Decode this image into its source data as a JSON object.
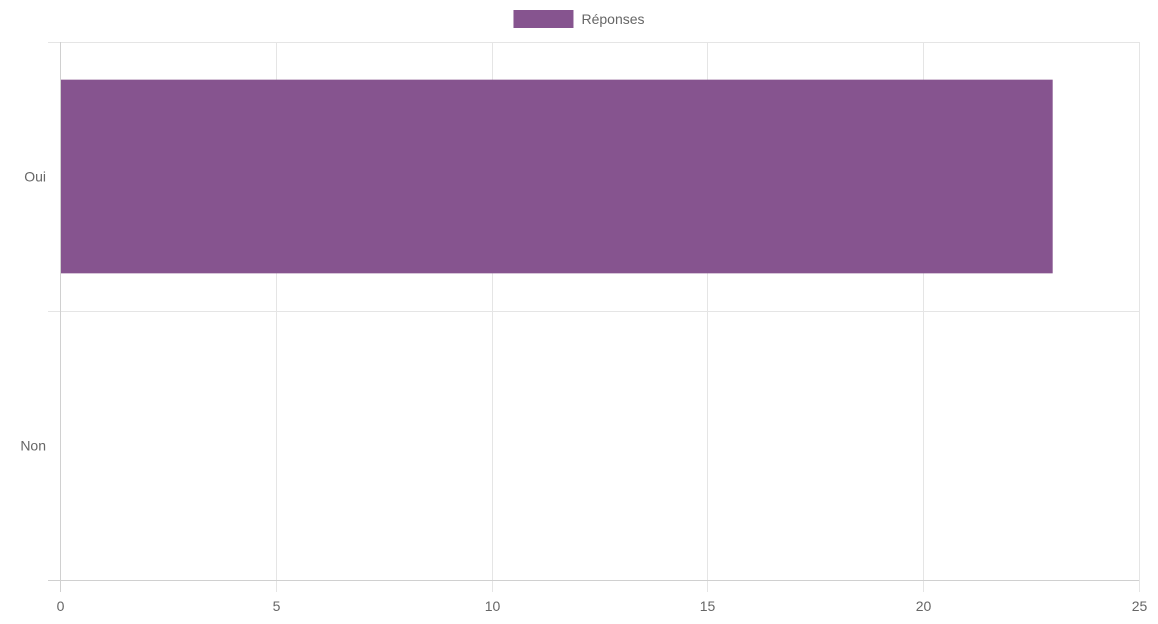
{
  "chart_data": {
    "type": "bar",
    "orientation": "horizontal",
    "categories": [
      "Oui",
      "Non"
    ],
    "series": [
      {
        "name": "Réponses",
        "values": [
          23,
          0
        ],
        "color": "#86548f"
      }
    ],
    "xlim": [
      0,
      25
    ],
    "xticks": [
      0,
      5,
      10,
      15,
      20,
      25
    ],
    "grid": true,
    "legend": "top-center",
    "colors": {
      "grid": "#e5e5e5",
      "axis_text": "#666666"
    }
  }
}
